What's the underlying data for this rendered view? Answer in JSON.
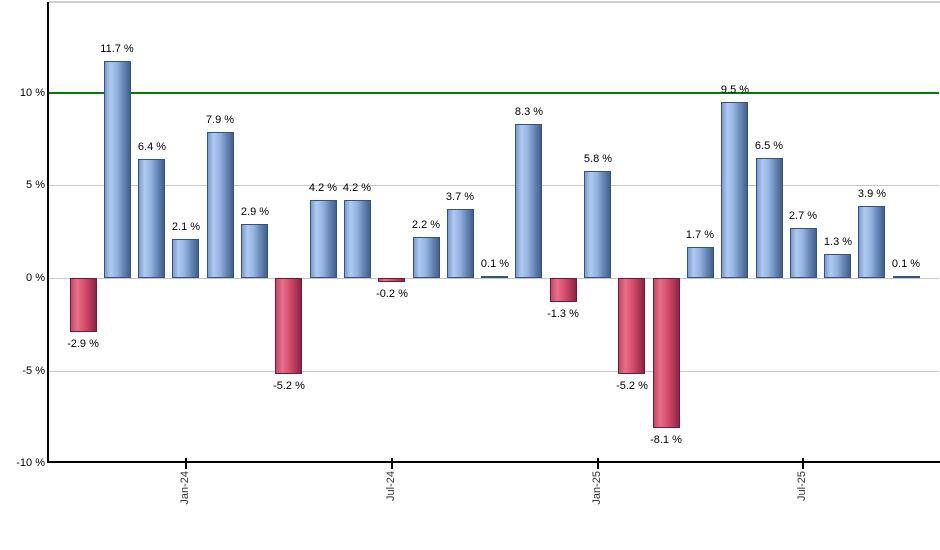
{
  "chart_data": {
    "type": "bar",
    "title": "",
    "unit": "%",
    "values": [
      -2.9,
      11.7,
      6.4,
      2.1,
      7.9,
      2.9,
      -5.2,
      4.2,
      4.2,
      -0.2,
      2.2,
      3.7,
      0.1,
      8.3,
      -1.3,
      5.8,
      -5.2,
      -8.1,
      1.7,
      9.5,
      6.5,
      2.7,
      1.3,
      3.9,
      0.1
    ],
    "bar_labels": [
      "-2.9 %",
      "11.7 %",
      "6.4 %",
      "2.1 %",
      "7.9 %",
      "2.9 %",
      "-5.2 %",
      "4.2 %",
      "4.2 %",
      "-0.2 %",
      "2.2 %",
      "3.7 %",
      "0.1 %",
      "8.3 %",
      "-1.3 %",
      "5.8 %",
      "-5.2 %",
      "-8.1 %",
      "1.7 %",
      "9.5 %",
      "6.5 %",
      "2.7 %",
      "1.3 %",
      "3.9 %",
      "0.1 %"
    ],
    "x_tick_labels": [
      "Jan-24",
      "Jul-24",
      "Jan-25",
      "Jul-25"
    ],
    "x_tick_bar_indices": [
      3,
      9,
      15,
      21
    ],
    "y_tick_labels": [
      "10 %",
      "5 %",
      "0 %",
      "-5 %",
      "-10 %"
    ],
    "y_tick_values": [
      10,
      5,
      0,
      -5,
      -10
    ],
    "ylim": [
      -10,
      14.9
    ],
    "grid": true,
    "legend": false,
    "xlabel": "",
    "ylabel": "",
    "reference_line": {
      "value": 10,
      "color": "#007c00"
    },
    "colors": {
      "positive_bar_border": "#35537e",
      "positive_bar_gradient": [
        "#7b9cd0",
        "#aecaf0",
        "#93b2e0",
        "#6585b4",
        "#42608e"
      ],
      "negative_bar_border": "#711b36",
      "negative_bar_gradient": [
        "#c04a68",
        "#e86e8a",
        "#d04868",
        "#8e2344"
      ],
      "gridline": "#c6c6c6",
      "axis": "#000000",
      "text": "#000000"
    }
  }
}
